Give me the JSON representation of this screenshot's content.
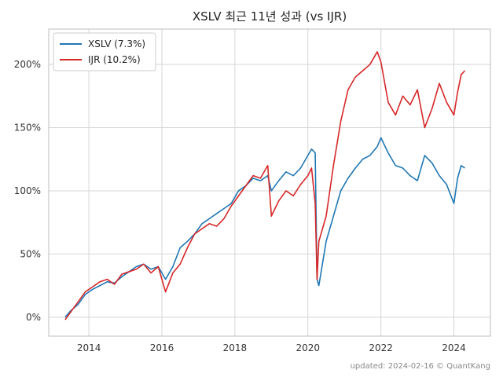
{
  "chart_data": {
    "type": "line",
    "title": "XSLV 최근 11년 성과 (vs IJR)",
    "xlabel": "",
    "ylabel": "",
    "xlim": [
      2012.9,
      2025.0
    ],
    "ylim": [
      -15,
      228
    ],
    "x_ticks": [
      2014,
      2016,
      2018,
      2020,
      2022,
      2024
    ],
    "x_tick_labels": [
      "2014",
      "2016",
      "2018",
      "2020",
      "2022",
      "2024"
    ],
    "y_ticks": [
      0,
      50,
      100,
      150,
      200
    ],
    "y_tick_labels": [
      "0%",
      "50%",
      "100%",
      "150%",
      "200%"
    ],
    "grid": true,
    "legend_position": "top-left",
    "footer": "updated: 2024-02-16 © QuantKang",
    "series": [
      {
        "name": "XSLV (7.3%)",
        "color": "#1f77b4",
        "x": [
          2013.35,
          2013.5,
          2013.7,
          2013.9,
          2014.1,
          2014.3,
          2014.5,
          2014.7,
          2014.9,
          2015.1,
          2015.3,
          2015.5,
          2015.7,
          2015.9,
          2016.1,
          2016.3,
          2016.5,
          2016.7,
          2016.9,
          2017.1,
          2017.3,
          2017.5,
          2017.7,
          2017.9,
          2018.1,
          2018.3,
          2018.5,
          2018.7,
          2018.9,
          2019.0,
          2019.2,
          2019.4,
          2019.6,
          2019.8,
          2020.0,
          2020.1,
          2020.2,
          2020.25,
          2020.3,
          2020.5,
          2020.7,
          2020.9,
          2021.1,
          2021.3,
          2021.5,
          2021.7,
          2021.9,
          2022.0,
          2022.2,
          2022.4,
          2022.6,
          2022.8,
          2023.0,
          2023.2,
          2023.4,
          2023.6,
          2023.8,
          2024.0,
          2024.1,
          2024.2,
          2024.3
        ],
        "y": [
          0,
          5,
          10,
          18,
          22,
          25,
          28,
          27,
          32,
          36,
          40,
          42,
          38,
          40,
          30,
          40,
          55,
          60,
          66,
          74,
          78,
          82,
          86,
          90,
          100,
          104,
          110,
          108,
          112,
          100,
          108,
          115,
          112,
          118,
          128,
          133,
          130,
          30,
          25,
          60,
          80,
          100,
          110,
          118,
          125,
          128,
          135,
          142,
          130,
          120,
          118,
          112,
          108,
          128,
          122,
          112,
          105,
          90,
          110,
          120,
          118
        ]
      },
      {
        "name": "IJR (10.2%)",
        "color": "#d62728",
        "x": [
          2013.35,
          2013.5,
          2013.7,
          2013.9,
          2014.1,
          2014.3,
          2014.5,
          2014.7,
          2014.9,
          2015.1,
          2015.3,
          2015.5,
          2015.7,
          2015.9,
          2016.1,
          2016.3,
          2016.5,
          2016.7,
          2016.9,
          2017.1,
          2017.3,
          2017.5,
          2017.7,
          2017.9,
          2018.1,
          2018.3,
          2018.5,
          2018.7,
          2018.9,
          2019.0,
          2019.2,
          2019.4,
          2019.6,
          2019.8,
          2020.0,
          2020.1,
          2020.2,
          2020.25,
          2020.3,
          2020.5,
          2020.7,
          2020.9,
          2021.1,
          2021.3,
          2021.5,
          2021.7,
          2021.9,
          2022.0,
          2022.2,
          2022.4,
          2022.6,
          2022.8,
          2023.0,
          2023.2,
          2023.4,
          2023.6,
          2023.8,
          2024.0,
          2024.1,
          2024.2,
          2024.3
        ],
        "y": [
          -2,
          4,
          12,
          20,
          24,
          28,
          30,
          26,
          34,
          36,
          38,
          42,
          35,
          40,
          20,
          35,
          42,
          55,
          66,
          70,
          74,
          72,
          78,
          88,
          96,
          104,
          112,
          110,
          120,
          80,
          92,
          100,
          96,
          105,
          112,
          118,
          90,
          30,
          60,
          80,
          120,
          155,
          180,
          190,
          195,
          200,
          210,
          202,
          170,
          160,
          175,
          168,
          180,
          150,
          165,
          185,
          170,
          160,
          178,
          192,
          195
        ]
      }
    ]
  }
}
